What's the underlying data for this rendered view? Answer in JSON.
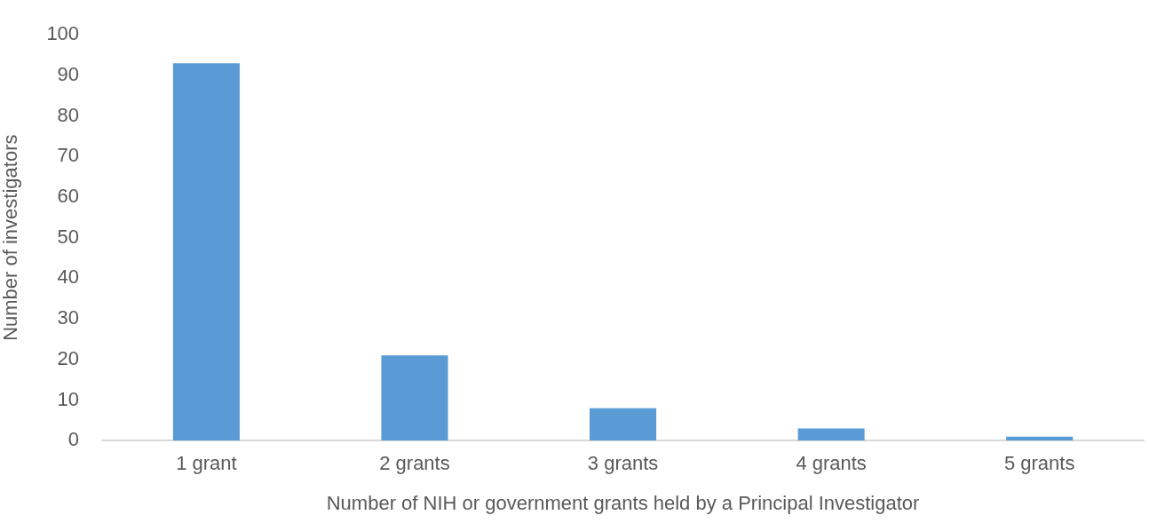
{
  "chart_data": {
    "type": "bar",
    "xlabel": "Number of NIH or government grants held by a Principal Investigator",
    "ylabel": "Number of investigators",
    "categories": [
      "1 grant",
      "2 grants",
      "3 grants",
      "4 grants",
      "5 grants"
    ],
    "values": [
      93,
      21,
      8,
      3,
      1
    ],
    "color": "#5b9bd5",
    "ylim": [
      0,
      100
    ],
    "yticks": [
      0,
      10,
      20,
      30,
      40,
      50,
      60,
      70,
      80,
      90,
      100
    ],
    "grid": false,
    "legend": false
  }
}
